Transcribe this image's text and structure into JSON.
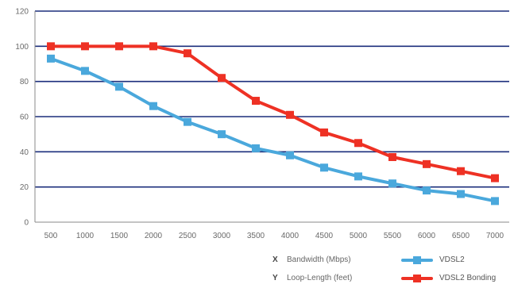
{
  "chart_data": {
    "type": "line",
    "x": [
      500,
      1000,
      1500,
      2000,
      2500,
      3000,
      3500,
      4000,
      4500,
      5000,
      5500,
      6000,
      6500,
      7000
    ],
    "xticks": [
      "500",
      "1000",
      "1500",
      "2000",
      "2500",
      "3000",
      "3500",
      "4000",
      "4500",
      "5000",
      "5500",
      "6000",
      "6500",
      "7000"
    ],
    "ylim": [
      0,
      120
    ],
    "yticks": [
      "0",
      "20",
      "40",
      "60",
      "80",
      "100",
      "120"
    ],
    "grid": "horizontal",
    "series": [
      {
        "name": "VDSL2",
        "color": "#4aa8dc",
        "values": [
          93,
          86,
          77,
          66,
          57,
          50,
          42,
          38,
          31,
          26,
          22,
          18,
          16,
          12
        ]
      },
      {
        "name": "VDSL2 Bonding",
        "color": "#ee3124",
        "values": [
          100,
          100,
          100,
          100,
          96,
          82,
          69,
          61,
          51,
          45,
          37,
          33,
          29,
          25
        ]
      }
    ],
    "axis_legend": [
      {
        "key": "X",
        "description": "Bandwidth (Mbps)"
      },
      {
        "key": "Y",
        "description": "Loop-Length (feet)"
      }
    ],
    "gridline_color": "#1c2f7c",
    "axis_color": "#8a8a8a"
  }
}
